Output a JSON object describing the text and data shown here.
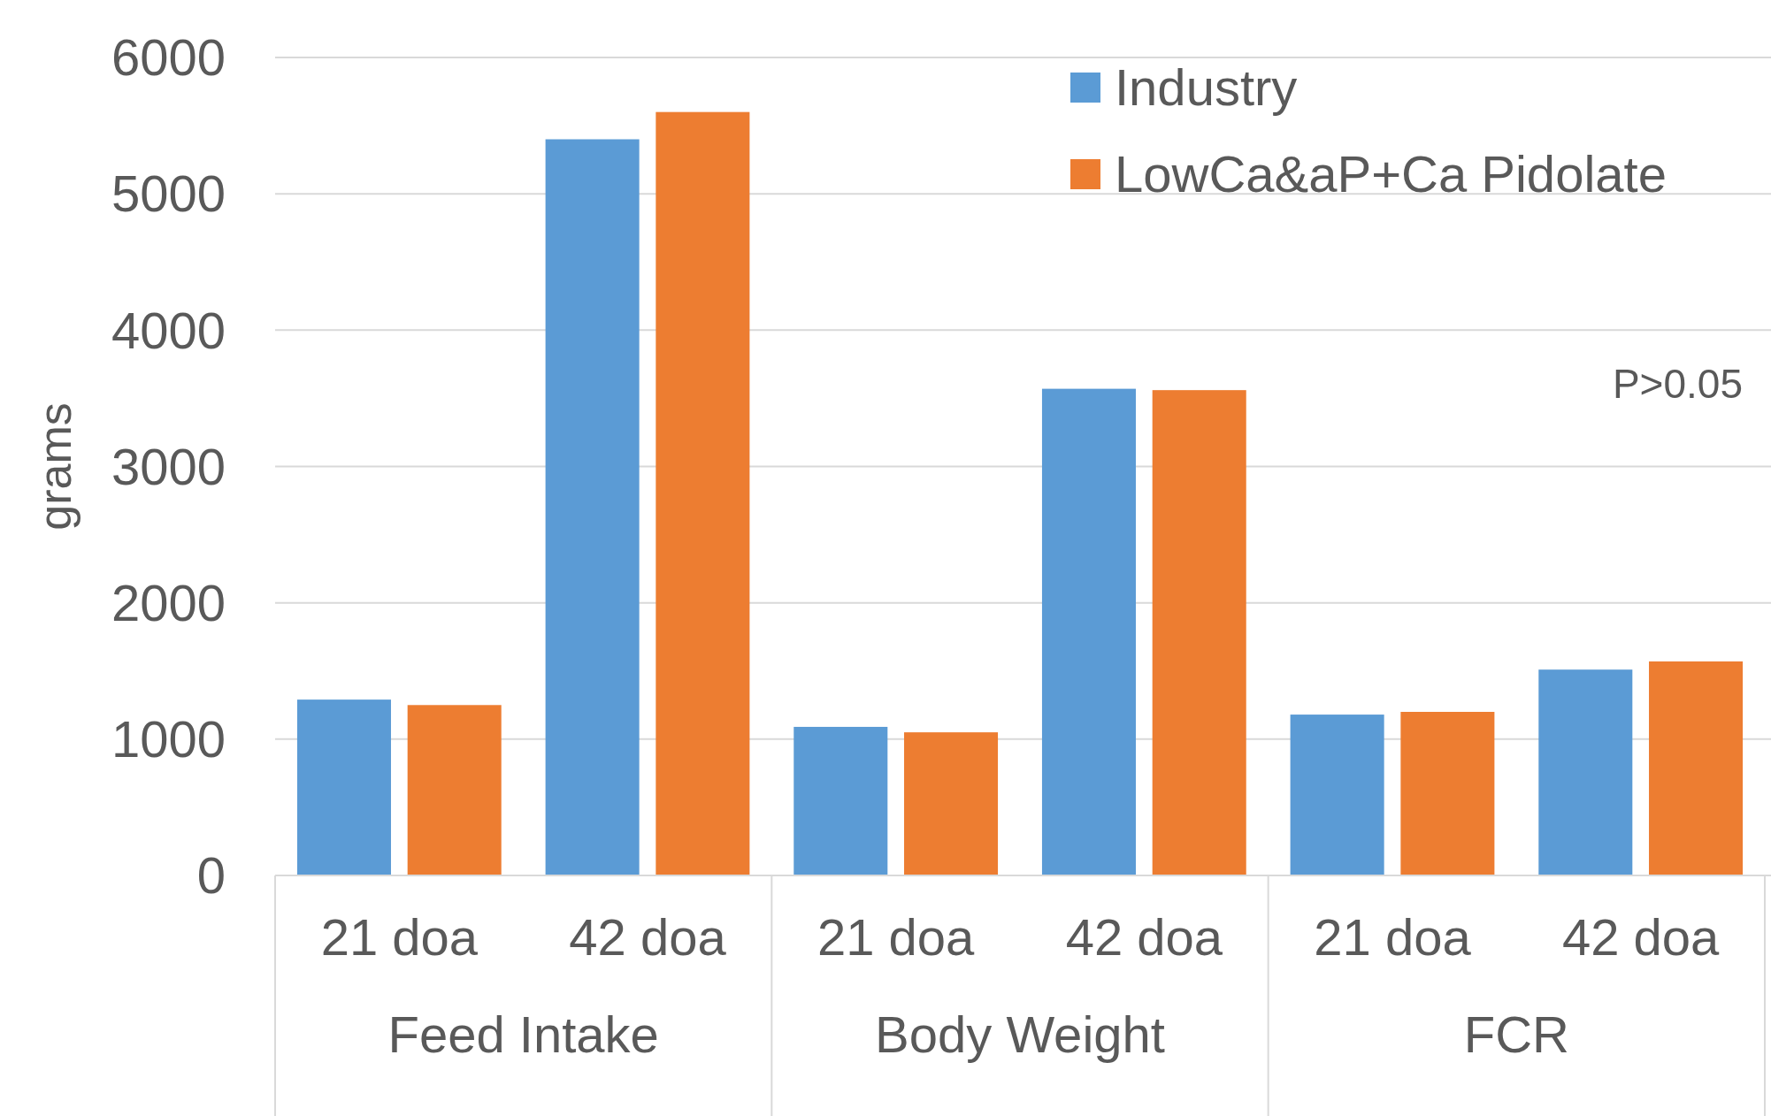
{
  "chart_data": {
    "type": "bar",
    "ylabel": "grams",
    "categories": [
      "21 doa",
      "42 doa",
      "21 doa",
      "42 doa",
      "21 doa",
      "42 doa"
    ],
    "series": [
      {
        "name": "Industry",
        "color": "#5b9bd5",
        "values": [
          1290,
          5400,
          1090,
          3570,
          1180,
          1510
        ]
      },
      {
        "name": "LowCa&aP+Ca Pidolate",
        "color": "#ed7d31",
        "values": [
          1250,
          5600,
          1050,
          3560,
          1200,
          1570
        ]
      }
    ],
    "ylim": [
      0,
      6000
    ],
    "yticks": [
      0,
      1000,
      2000,
      3000,
      4000,
      5000,
      6000
    ],
    "grid": "y",
    "legend": "top right",
    "annotations": [
      "Feed Intake",
      "Body Weight",
      "FCR",
      "P>0.05"
    ]
  }
}
